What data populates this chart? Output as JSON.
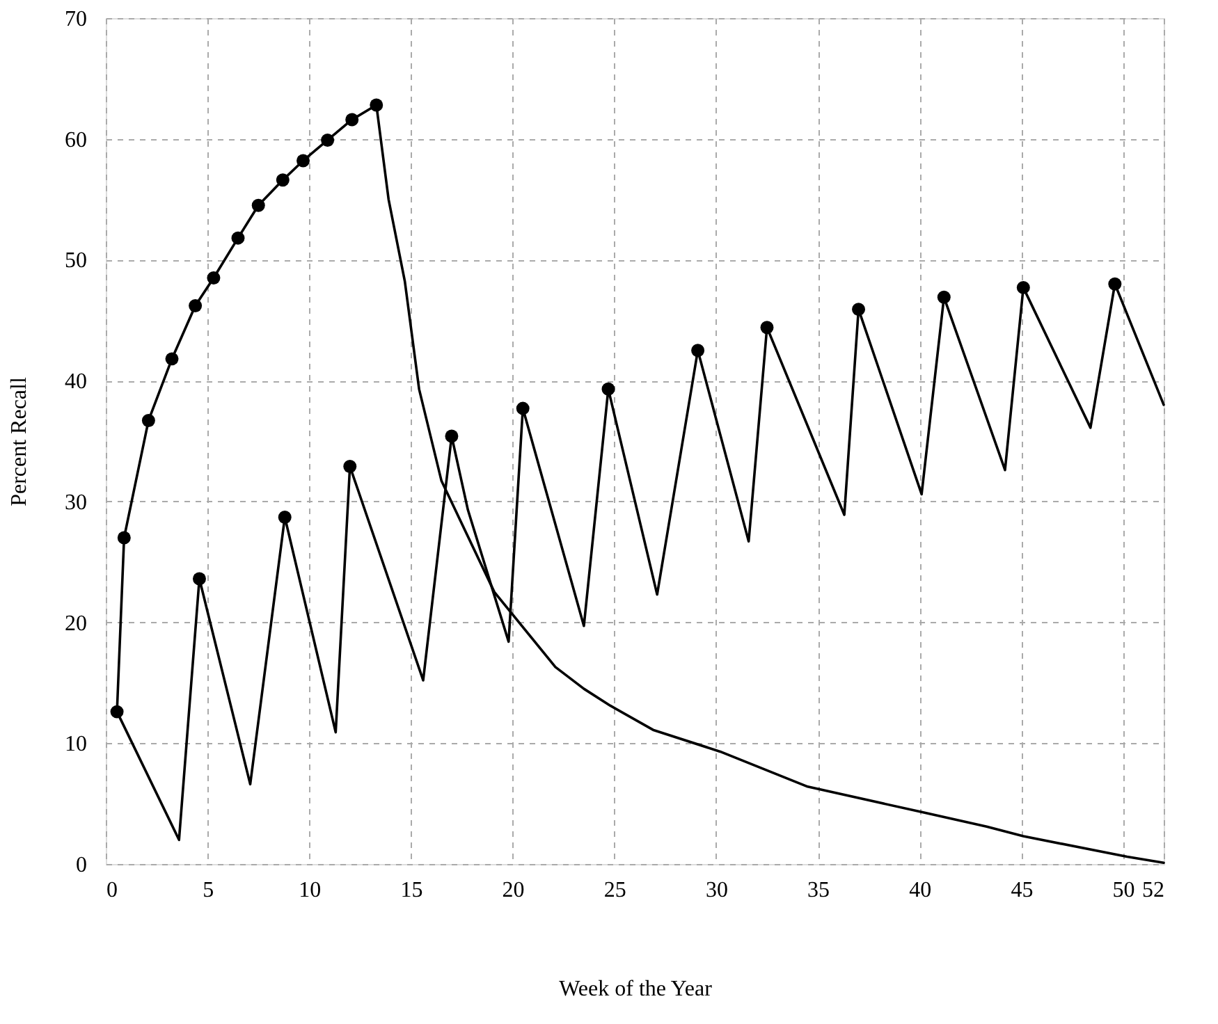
{
  "chart_data": {
    "type": "line",
    "xlabel": "Week of the Year",
    "ylabel": "Percent Recall",
    "xlim": [
      0,
      52
    ],
    "xticks": [
      0,
      5,
      10,
      15,
      20,
      25,
      30,
      35,
      40,
      45,
      50,
      52
    ],
    "ylim": [
      0,
      70
    ],
    "yticks": [
      0,
      10,
      20,
      30,
      40,
      50,
      60,
      70
    ],
    "grid": true,
    "marker": "none",
    "line_style": "solid",
    "series": [
      {
        "color": "#000000",
        "x": [
          0.55,
          0.9,
          2.1,
          3.25,
          4.4,
          5.3,
          6.5,
          7.5,
          8.7,
          9.7,
          10.9,
          12.1,
          13.3,
          13.9,
          14.7,
          15.4,
          16.5,
          19.1,
          22.1,
          23.5,
          24.8,
          26.9,
          30.2,
          34.5,
          40.1,
          43.3,
          45.1,
          50.2,
          52
        ],
        "values": [
          12.6,
          27.0,
          36.7,
          41.8,
          46.2,
          48.5,
          51.8,
          54.5,
          56.6,
          58.2,
          59.9,
          61.6,
          62.8,
          55,
          48.2,
          39.3,
          31.7,
          22.5,
          16.3,
          14.5,
          13.1,
          11.1,
          9.3,
          6.4,
          4.3,
          3.1,
          2.3,
          0.6,
          0.1
        ]
      },
      {
        "color": "#000000",
        "x": [
          0.55,
          3.6,
          4.6,
          7.1,
          8.8,
          11.3,
          12.0,
          15.6,
          17.0,
          17.8,
          19.8,
          20.5,
          23.5,
          24.7,
          27.1,
          29.1,
          31.6,
          32.5,
          36.3,
          37.0,
          40.1,
          41.2,
          44.2,
          45.1,
          48.4,
          49.6,
          52
        ],
        "values": [
          12.6,
          2.0,
          23.6,
          6.6,
          28.7,
          10.9,
          32.9,
          15.2,
          35.4,
          29.3,
          18.4,
          37.7,
          19.7,
          39.3,
          22.3,
          42.5,
          26.7,
          44.4,
          28.9,
          45.9,
          30.6,
          46.9,
          32.6,
          47.7,
          36.1,
          48.0,
          38.0
        ]
      },
      {
        "type": "scatter",
        "marker": "circle",
        "color": "#000000",
        "x": [
          0.55,
          0.9,
          2.1,
          3.25,
          4.4,
          5.3,
          6.5,
          7.5,
          8.7,
          9.7,
          10.9,
          12.1,
          13.3
        ],
        "values": [
          12.6,
          27.0,
          36.7,
          41.8,
          46.2,
          48.5,
          51.8,
          54.5,
          56.6,
          58.2,
          59.9,
          61.6,
          62.8
        ]
      },
      {
        "type": "scatter",
        "marker": "circle",
        "color": "#000000",
        "x": [
          4.6,
          8.8,
          12.0,
          17.0,
          20.5,
          24.7,
          29.1,
          32.5,
          37.0,
          41.2,
          45.1,
          49.6
        ],
        "values": [
          23.6,
          28.7,
          32.9,
          35.4,
          37.7,
          39.3,
          42.5,
          44.4,
          45.9,
          46.9,
          47.7,
          48.0
        ]
      }
    ]
  }
}
